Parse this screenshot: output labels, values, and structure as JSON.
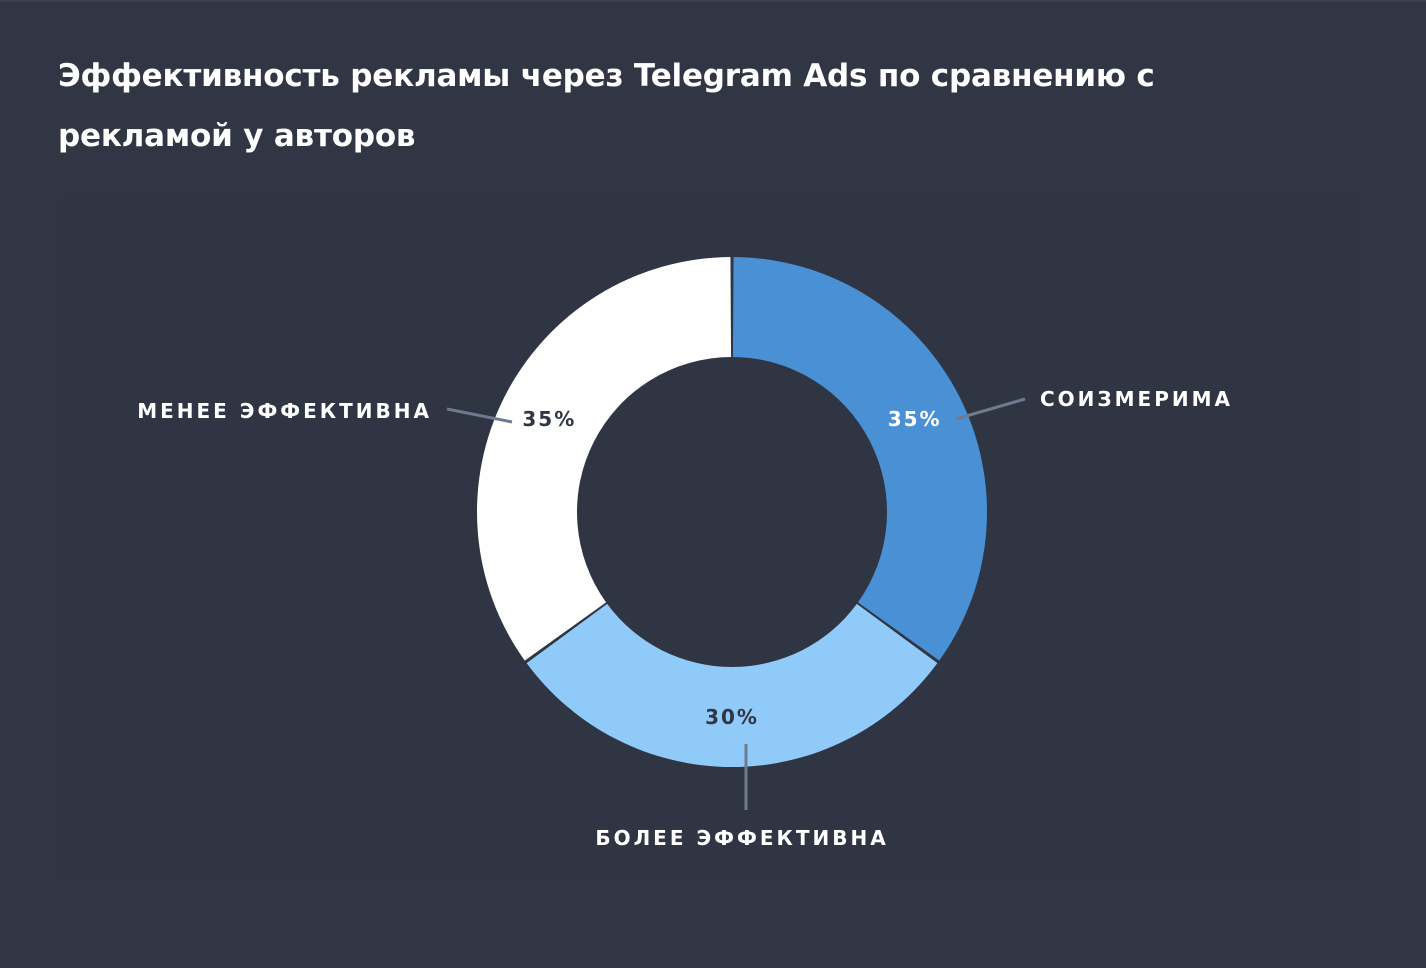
{
  "title": "Эффективность рекламы через Telegram Ads по сравнению с рекламой у авторов",
  "chart_data": {
    "type": "pie",
    "donut": true,
    "title": "Эффективность рекламы через Telegram Ads по сравнению с рекламой у авторов",
    "categories": [
      "СОИЗМЕРИМА",
      "БОЛЕЕ ЭФФЕКТИВНА",
      "МЕНЕЕ ЭФФЕКТИВНА"
    ],
    "values": [
      35,
      30,
      35
    ],
    "value_labels": [
      "35%",
      "30%",
      "35%"
    ],
    "colors": [
      "#4a90d4",
      "#90caf9",
      "#ffffff"
    ],
    "label_colors": [
      "#ffffff",
      "#313644",
      "#313644"
    ],
    "background": "#313644",
    "connector_color": "#6f7a8e"
  }
}
